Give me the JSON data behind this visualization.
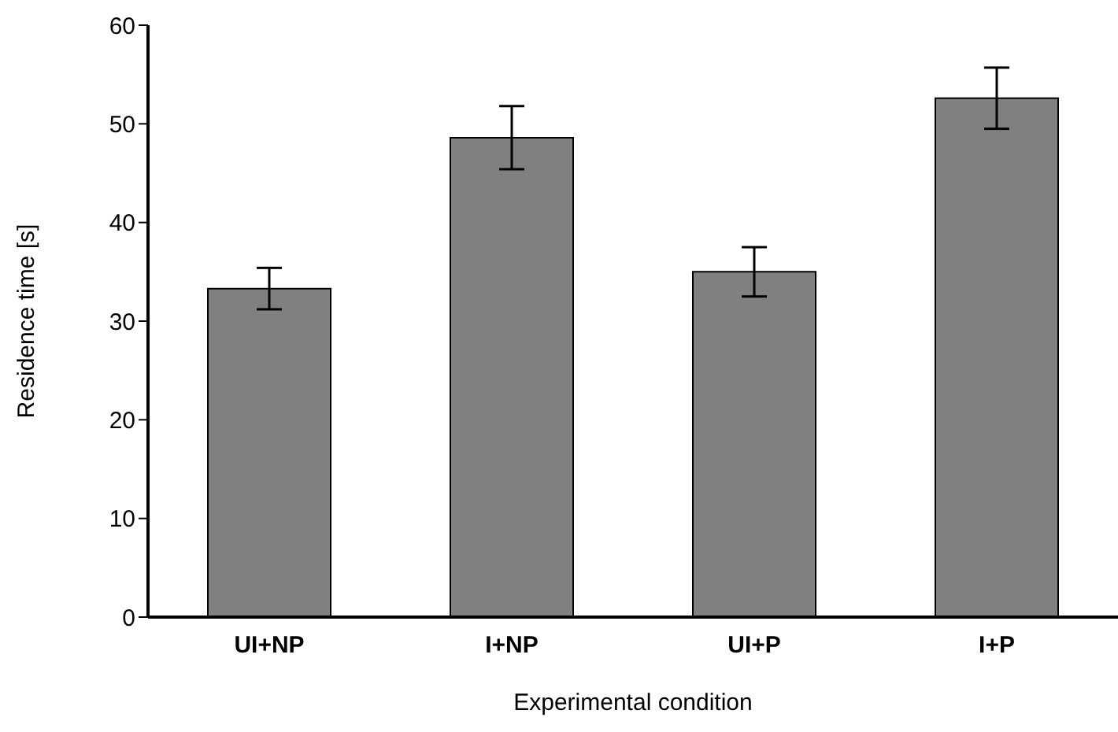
{
  "chart_data": {
    "type": "bar",
    "xlabel": "Experimental condition",
    "ylabel": "Residence time [s]",
    "categories": [
      "UI+NP",
      "I+NP",
      "UI+P",
      "I+P"
    ],
    "values": [
      33.3,
      48.6,
      35.0,
      52.6
    ],
    "errors": [
      2.1,
      3.2,
      2.5,
      3.1
    ],
    "color": "#808080",
    "ylim": [
      0,
      60
    ],
    "yticks": [
      0,
      10,
      20,
      30,
      40,
      50,
      60
    ],
    "grid": false
  }
}
